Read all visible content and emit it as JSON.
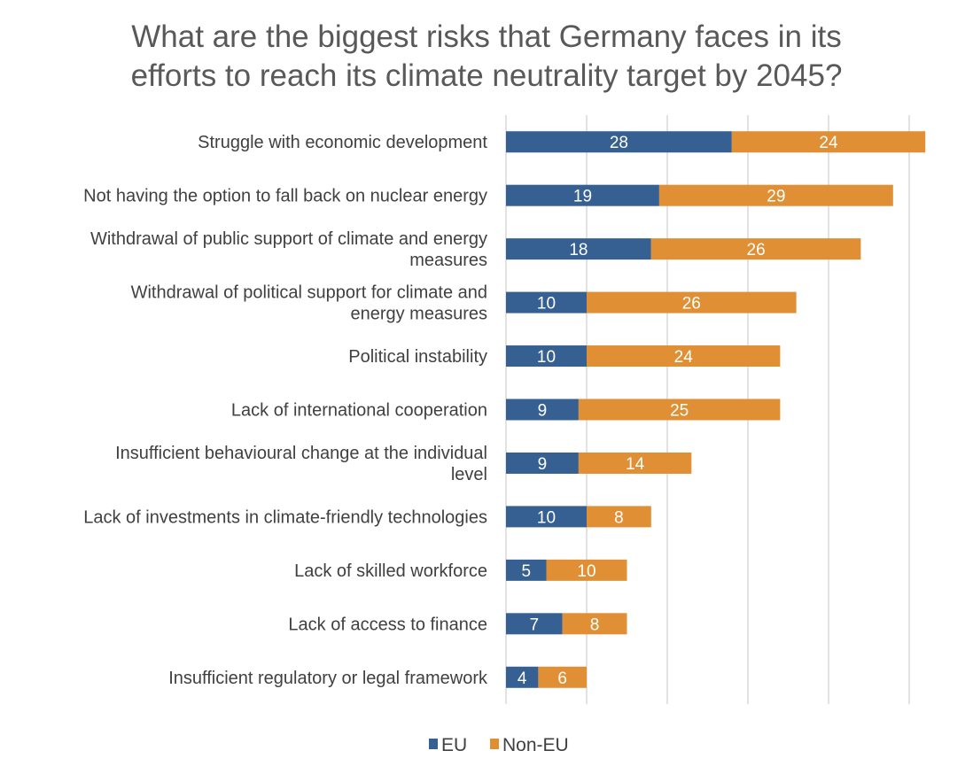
{
  "chart_data": {
    "type": "bar",
    "orientation": "horizontal",
    "stacked": true,
    "title": "What are the biggest risks that Germany faces in its efforts to reach its climate neutrality target by 2045?",
    "title_lines": [
      "What are the biggest risks that Germany faces in its",
      "efforts to reach its climate neutrality target by 2045?"
    ],
    "categories": [
      [
        "Struggle with economic development"
      ],
      [
        "Not having the option to fall back on nuclear energy"
      ],
      [
        "Withdrawal of public support of climate and energy",
        "measures"
      ],
      [
        "Withdrawal of political support for climate and",
        "energy measures"
      ],
      [
        "Political instability"
      ],
      [
        "Lack of international cooperation"
      ],
      [
        "Insufficient behavioural change at the individual",
        "level"
      ],
      [
        "Lack of investments in climate-friendly technologies"
      ],
      [
        "Lack of skilled workforce"
      ],
      [
        "Lack of access to finance"
      ],
      [
        "Insufficient regulatory or legal framework"
      ]
    ],
    "series": [
      {
        "name": "EU",
        "color": "#366092",
        "values": [
          28,
          19,
          18,
          10,
          10,
          9,
          9,
          10,
          5,
          7,
          4
        ]
      },
      {
        "name": "Non-EU",
        "color": "#E08F34",
        "values": [
          24,
          29,
          26,
          26,
          24,
          25,
          14,
          8,
          10,
          8,
          6
        ]
      }
    ],
    "xlim": [
      0,
      50
    ],
    "x_gridlines": [
      0,
      10,
      20,
      30,
      40,
      50
    ],
    "grid": true,
    "xlabel": "",
    "ylabel": "",
    "legend_position": "bottom",
    "data_labels": true
  }
}
